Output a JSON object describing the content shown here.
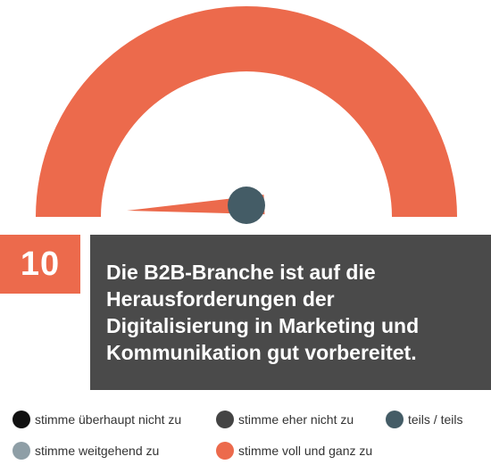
{
  "chart_data": {
    "type": "gauge",
    "question_number": "10",
    "statement": "Die B2B-Branche ist auf die Herausforderungen der Digitalisierung in Marketing und Kommunikation gut vorbereitet.",
    "scale": [
      {
        "label": "stimme überhaupt nicht zu",
        "color": "#111111"
      },
      {
        "label": "stimme eher nicht zu",
        "color": "#444444"
      },
      {
        "label": "teils / teils",
        "color": "#445c66"
      },
      {
        "label": "stimme weitgehend zu",
        "color": "#8e9ea6"
      },
      {
        "label": "stimme voll und ganz zu",
        "color": "#ec6a4c"
      }
    ],
    "needle_position": 0.0,
    "arc_color": "#ec6a4c",
    "needle_color": "#ec6a4c",
    "hub_color": "#445c66"
  }
}
